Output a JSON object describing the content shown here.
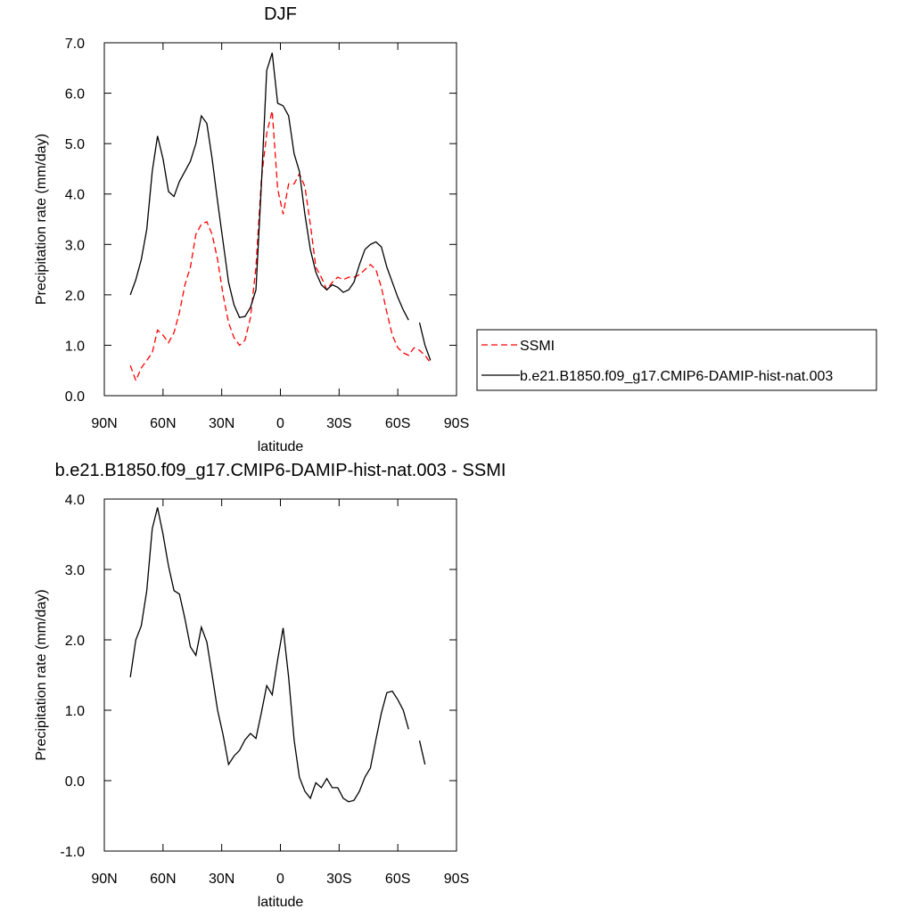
{
  "chart_data": [
    {
      "type": "line",
      "title": "DJF",
      "xlabel": "latitude",
      "ylabel": "Precipitation rate (mm/day)",
      "x": [
        76.7,
        73.9,
        71.1,
        68.3,
        65.5,
        62.8,
        60.0,
        57.2,
        54.4,
        51.6,
        48.8,
        46.0,
        43.2,
        40.4,
        37.6,
        34.9,
        32.1,
        29.3,
        26.5,
        23.7,
        20.9,
        18.1,
        15.3,
        12.5,
        9.7,
        7.0,
        4.2,
        1.4,
        -1.4,
        -4.2,
        -7.0,
        -9.7,
        -12.5,
        -15.3,
        -18.1,
        -20.9,
        -23.7,
        -26.5,
        -29.3,
        -32.1,
        -34.9,
        -37.6,
        -40.4,
        -43.2,
        -46.0,
        -48.8,
        -51.6,
        -54.4,
        -57.2,
        -60.0,
        -62.8,
        -65.5,
        -68.3,
        -71.1,
        -73.9,
        -76.7
      ],
      "xlim": [
        90,
        -90
      ],
      "xticks": [
        {
          "value": 90,
          "label": "90N"
        },
        {
          "value": 60,
          "label": "60N"
        },
        {
          "value": 30,
          "label": "30N"
        },
        0,
        {
          "value": -30,
          "label": "30S"
        },
        {
          "value": -60,
          "label": "60S"
        },
        {
          "value": -90,
          "label": "90S"
        }
      ],
      "ylim": [
        0,
        7
      ],
      "yticks": [
        {
          "value": 0,
          "label": "0.0"
        },
        {
          "value": 1,
          "label": "1.0"
        },
        {
          "value": 2,
          "label": "2.0"
        },
        {
          "value": 3,
          "label": "3.0"
        },
        {
          "value": 4,
          "label": "4.0"
        },
        {
          "value": 5,
          "label": "5.0"
        },
        {
          "value": 6,
          "label": "6.0"
        },
        {
          "value": 7,
          "label": "7.0"
        }
      ],
      "legend": "right",
      "series": [
        {
          "name": "SSMI",
          "color": "#ff0000",
          "line_style": "dashed",
          "values": [
            0.6,
            0.3,
            0.55,
            0.7,
            0.85,
            1.3,
            1.2,
            1.05,
            1.25,
            1.65,
            2.2,
            2.55,
            3.2,
            3.4,
            3.45,
            3.2,
            2.7,
            2.0,
            1.45,
            1.15,
            1.0,
            1.1,
            1.55,
            2.55,
            4.3,
            5.2,
            5.65,
            4.1,
            3.6,
            4.2,
            4.2,
            4.4,
            4.15,
            3.4,
            2.55,
            2.35,
            2.1,
            2.25,
            2.35,
            2.3,
            2.35,
            2.35,
            2.4,
            2.5,
            2.6,
            2.5,
            2.15,
            1.65,
            1.2,
            0.95,
            0.85,
            0.8,
            0.95,
            0.9,
            0.8,
            0.65
          ]
        },
        {
          "name": "b.e21.B1850.f09_g17.CMIP6-DAMIP-hist-nat.003",
          "color": "#000000",
          "line_style": "solid",
          "values": [
            2.0,
            2.3,
            2.7,
            3.3,
            4.45,
            5.15,
            4.7,
            4.05,
            3.95,
            4.25,
            4.45,
            4.65,
            5.0,
            5.55,
            5.4,
            4.7,
            3.85,
            3.05,
            2.25,
            1.8,
            1.55,
            1.57,
            1.75,
            2.1,
            4.2,
            6.45,
            6.8,
            5.8,
            5.75,
            5.55,
            4.8,
            4.45,
            3.6,
            2.9,
            2.45,
            2.2,
            2.1,
            2.2,
            2.15,
            2.05,
            2.1,
            2.25,
            2.6,
            2.9,
            3.0,
            3.05,
            2.95,
            2.55,
            2.25,
            1.95,
            1.7,
            1.5,
            null,
            1.45,
            1.0,
            0.7
          ]
        }
      ]
    },
    {
      "type": "line",
      "title": "b.e21.B1850.f09_g17.CMIP6-DAMIP-hist-nat.003 - SSMI",
      "xlabel": "latitude",
      "ylabel": "Precipitation rate (mm/day)",
      "x": [
        76.7,
        73.9,
        71.1,
        68.3,
        65.5,
        62.8,
        60.0,
        57.2,
        54.4,
        51.6,
        48.8,
        46.0,
        43.2,
        40.4,
        37.6,
        34.9,
        32.1,
        29.3,
        26.5,
        23.7,
        20.9,
        18.1,
        15.3,
        12.5,
        9.7,
        7.0,
        4.2,
        1.4,
        -1.4,
        -4.2,
        -7.0,
        -9.7,
        -12.5,
        -15.3,
        -18.1,
        -20.9,
        -23.7,
        -26.5,
        -29.3,
        -32.1,
        -34.9,
        -37.6,
        -40.4,
        -43.2,
        -46.0,
        -48.8,
        -51.6,
        -54.4,
        -57.2,
        -60.0,
        -62.8,
        -65.5,
        -68.3,
        -71.1,
        -73.9,
        -76.7
      ],
      "xlim": [
        90,
        -90
      ],
      "xticks": [
        {
          "value": 90,
          "label": "90N"
        },
        {
          "value": 60,
          "label": "60N"
        },
        {
          "value": 30,
          "label": "30N"
        },
        0,
        {
          "value": -30,
          "label": "30S"
        },
        {
          "value": -60,
          "label": "60S"
        },
        {
          "value": -90,
          "label": "90S"
        }
      ],
      "ylim": [
        -1,
        4
      ],
      "yticks": [
        {
          "value": -1,
          "label": "-1.0"
        },
        {
          "value": 0,
          "label": "0.0"
        },
        {
          "value": 1,
          "label": "1.0"
        },
        {
          "value": 2,
          "label": "2.0"
        },
        {
          "value": 3,
          "label": "3.0"
        },
        {
          "value": 4,
          "label": "4.0"
        }
      ],
      "color": "#000000",
      "values": [
        1.47,
        2.0,
        2.2,
        2.7,
        3.58,
        3.88,
        3.5,
        3.05,
        2.7,
        2.65,
        2.3,
        1.9,
        1.78,
        2.18,
        1.97,
        1.5,
        1.0,
        0.65,
        0.23,
        0.35,
        0.43,
        0.58,
        0.67,
        0.6,
        0.97,
        1.35,
        1.22,
        1.72,
        2.17,
        1.47,
        0.58,
        0.05,
        -0.15,
        -0.25,
        -0.03,
        -0.1,
        0.03,
        -0.1,
        -0.1,
        -0.25,
        -0.3,
        -0.28,
        -0.15,
        0.05,
        0.18,
        0.58,
        0.96,
        1.25,
        1.27,
        1.15,
        1.0,
        0.73,
        null,
        0.57,
        0.23,
        null
      ]
    }
  ]
}
